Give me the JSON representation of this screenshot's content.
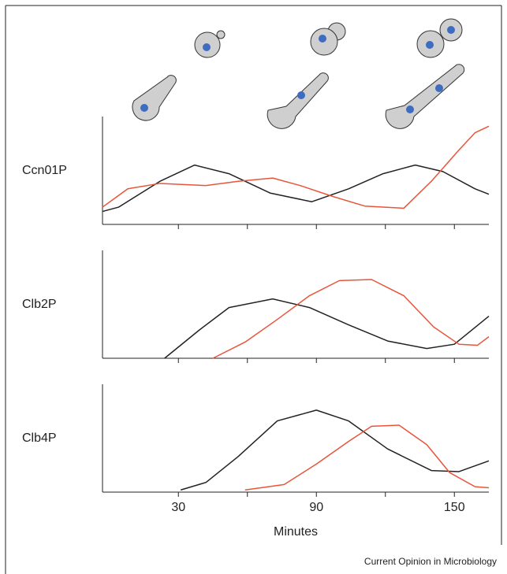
{
  "chart_data": [
    {
      "type": "line",
      "ylabel": "Ccn01P",
      "xlim": [
        -3,
        165
      ],
      "ylim": [
        0,
        1
      ],
      "xminor_ticks": [
        30,
        60,
        90,
        120,
        150
      ],
      "series": [
        {
          "color": "#222222",
          "x": [
            -3,
            4,
            22,
            37,
            52,
            70,
            88,
            104,
            119,
            133,
            145,
            159,
            165
          ],
          "values": [
            0.12,
            0.16,
            0.4,
            0.55,
            0.47,
            0.29,
            0.21,
            0.33,
            0.47,
            0.55,
            0.49,
            0.33,
            0.28
          ]
        },
        {
          "color": "#e8553a",
          "x": [
            -3,
            8,
            22,
            42,
            56,
            71,
            83,
            97,
            111,
            128,
            140,
            152,
            159,
            165
          ],
          "values": [
            0.16,
            0.33,
            0.38,
            0.36,
            0.4,
            0.43,
            0.36,
            0.26,
            0.17,
            0.15,
            0.4,
            0.69,
            0.85,
            0.91
          ]
        }
      ]
    },
    {
      "type": "line",
      "ylabel": "Clb2P",
      "xlim": [
        -3,
        165
      ],
      "ylim": [
        0,
        1
      ],
      "xminor_ticks": [
        30,
        60,
        90,
        120,
        150
      ],
      "series": [
        {
          "color": "#222222",
          "x": [
            24,
            39,
            52,
            71,
            87,
            104,
            121,
            138,
            150,
            165
          ],
          "values": [
            0,
            0.26,
            0.47,
            0.55,
            0.47,
            0.31,
            0.16,
            0.09,
            0.13,
            0.39
          ]
        },
        {
          "color": "#e8553a",
          "x": [
            45,
            59,
            73,
            87,
            100,
            114,
            128,
            141,
            152,
            160,
            165
          ],
          "values": [
            0,
            0.15,
            0.36,
            0.58,
            0.72,
            0.73,
            0.58,
            0.29,
            0.13,
            0.12,
            0.2
          ]
        }
      ]
    },
    {
      "type": "line",
      "ylabel": "Clb4P",
      "xlabel": "Minutes",
      "xlim": [
        -3,
        165
      ],
      "ylim": [
        0,
        1
      ],
      "xticks": [
        30,
        90,
        150
      ],
      "xminor_ticks": [
        60,
        120
      ],
      "series": [
        {
          "color": "#222222",
          "x": [
            31,
            42,
            56,
            73,
            90,
            104,
            121,
            140,
            152,
            165
          ],
          "values": [
            0.02,
            0.09,
            0.33,
            0.66,
            0.76,
            0.66,
            0.4,
            0.2,
            0.19,
            0.29
          ]
        },
        {
          "color": "#e8553a",
          "x": [
            59,
            76,
            90,
            104,
            114,
            126,
            138,
            148,
            159,
            165
          ],
          "values": [
            0.02,
            0.07,
            0.26,
            0.47,
            0.61,
            0.62,
            0.44,
            0.18,
            0.05,
            0.04
          ]
        }
      ]
    }
  ],
  "source": "Current Opinion in Microbiology"
}
